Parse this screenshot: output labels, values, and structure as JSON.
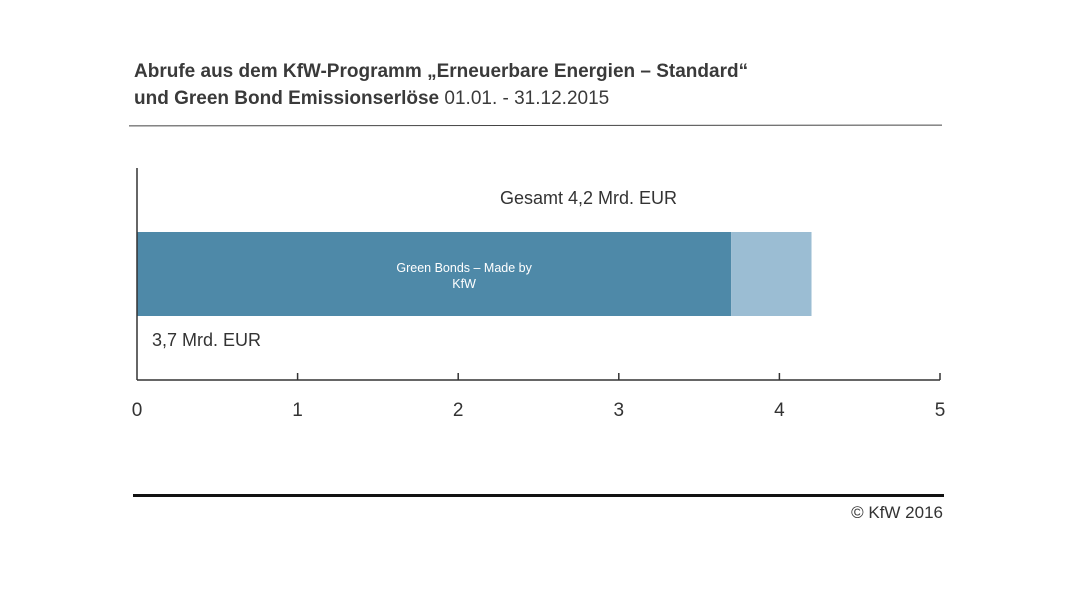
{
  "header": {
    "title_bold_line1": "Abrufe aus dem KfW-Programm „Erneuerbare Energien – Standard“",
    "title_bold_line2": "und Green Bond Emissionserlöse",
    "title_period": "01.01. - 31.12.2015"
  },
  "footer": {
    "copyright": "© KfW 2016"
  },
  "chart_data": {
    "type": "bar",
    "orientation": "horizontal",
    "stacked": true,
    "xlim": [
      0,
      5
    ],
    "xticks": [
      "0",
      "1",
      "2",
      "3",
      "4",
      "5"
    ],
    "grid": false,
    "series": [
      {
        "name": "Green Bonds – Made by KfW",
        "value": 3.7,
        "color": "#4e89a8"
      },
      {
        "value": 0.5,
        "color": "#9bbdd3"
      }
    ],
    "annotations": {
      "total": "Gesamt 4,2 Mrd. EUR",
      "green_bonds_value": "3,7 Mrd. EUR",
      "segment_label_line1": "Green Bonds – Made by",
      "segment_label_line2": "KfW"
    }
  }
}
